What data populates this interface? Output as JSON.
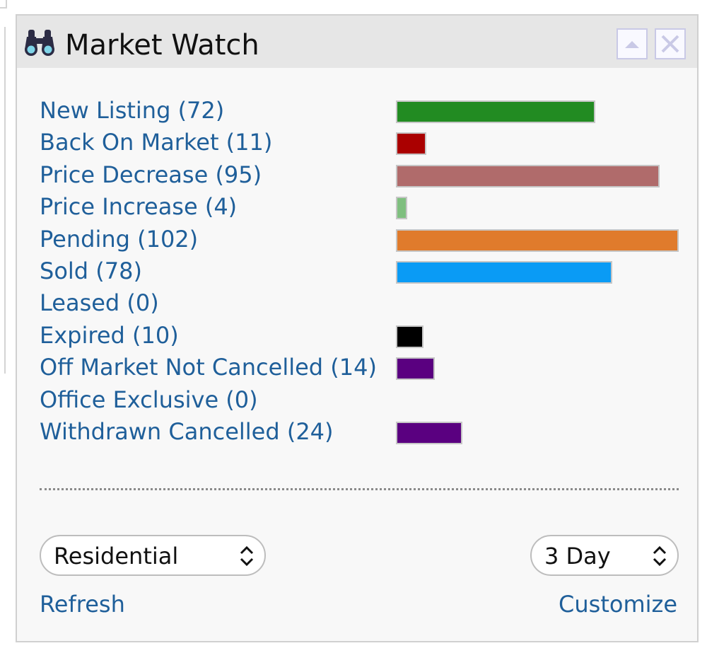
{
  "widget": {
    "title": "Market Watch",
    "icon": "binoculars-icon",
    "buttons": {
      "collapse_icon": "collapse-up-icon",
      "close_icon": "close-icon"
    }
  },
  "rows": [
    {
      "label": "New Listing (72)",
      "count": 72,
      "color": "#228B22"
    },
    {
      "label": "Back On Market (11)",
      "count": 11,
      "color": "#AA0000"
    },
    {
      "label": "Price Decrease (95)",
      "count": 95,
      "color": "#B06B6B"
    },
    {
      "label": "Price Increase (4)",
      "count": 4,
      "color": "#7FBF7F"
    },
    {
      "label": "Pending (102)",
      "count": 102,
      "color": "#E07B2C"
    },
    {
      "label": "Sold (78)",
      "count": 78,
      "color": "#0A9BF5"
    },
    {
      "label": "Leased (0)",
      "count": 0,
      "color": "#000000"
    },
    {
      "label": "Expired (10)",
      "count": 10,
      "color": "#000000"
    },
    {
      "label": "Off Market Not Cancelled (14)",
      "count": 14,
      "color": "#5A0080"
    },
    {
      "label": "Office Exclusive (0)",
      "count": 0,
      "color": "#5A0080"
    },
    {
      "label": "Withdrawn Cancelled (24)",
      "count": 24,
      "color": "#5A0080"
    }
  ],
  "filters": {
    "property_type": "Residential",
    "time_range": "3 Day"
  },
  "actions": {
    "refresh": "Refresh",
    "customize": "Customize"
  }
}
